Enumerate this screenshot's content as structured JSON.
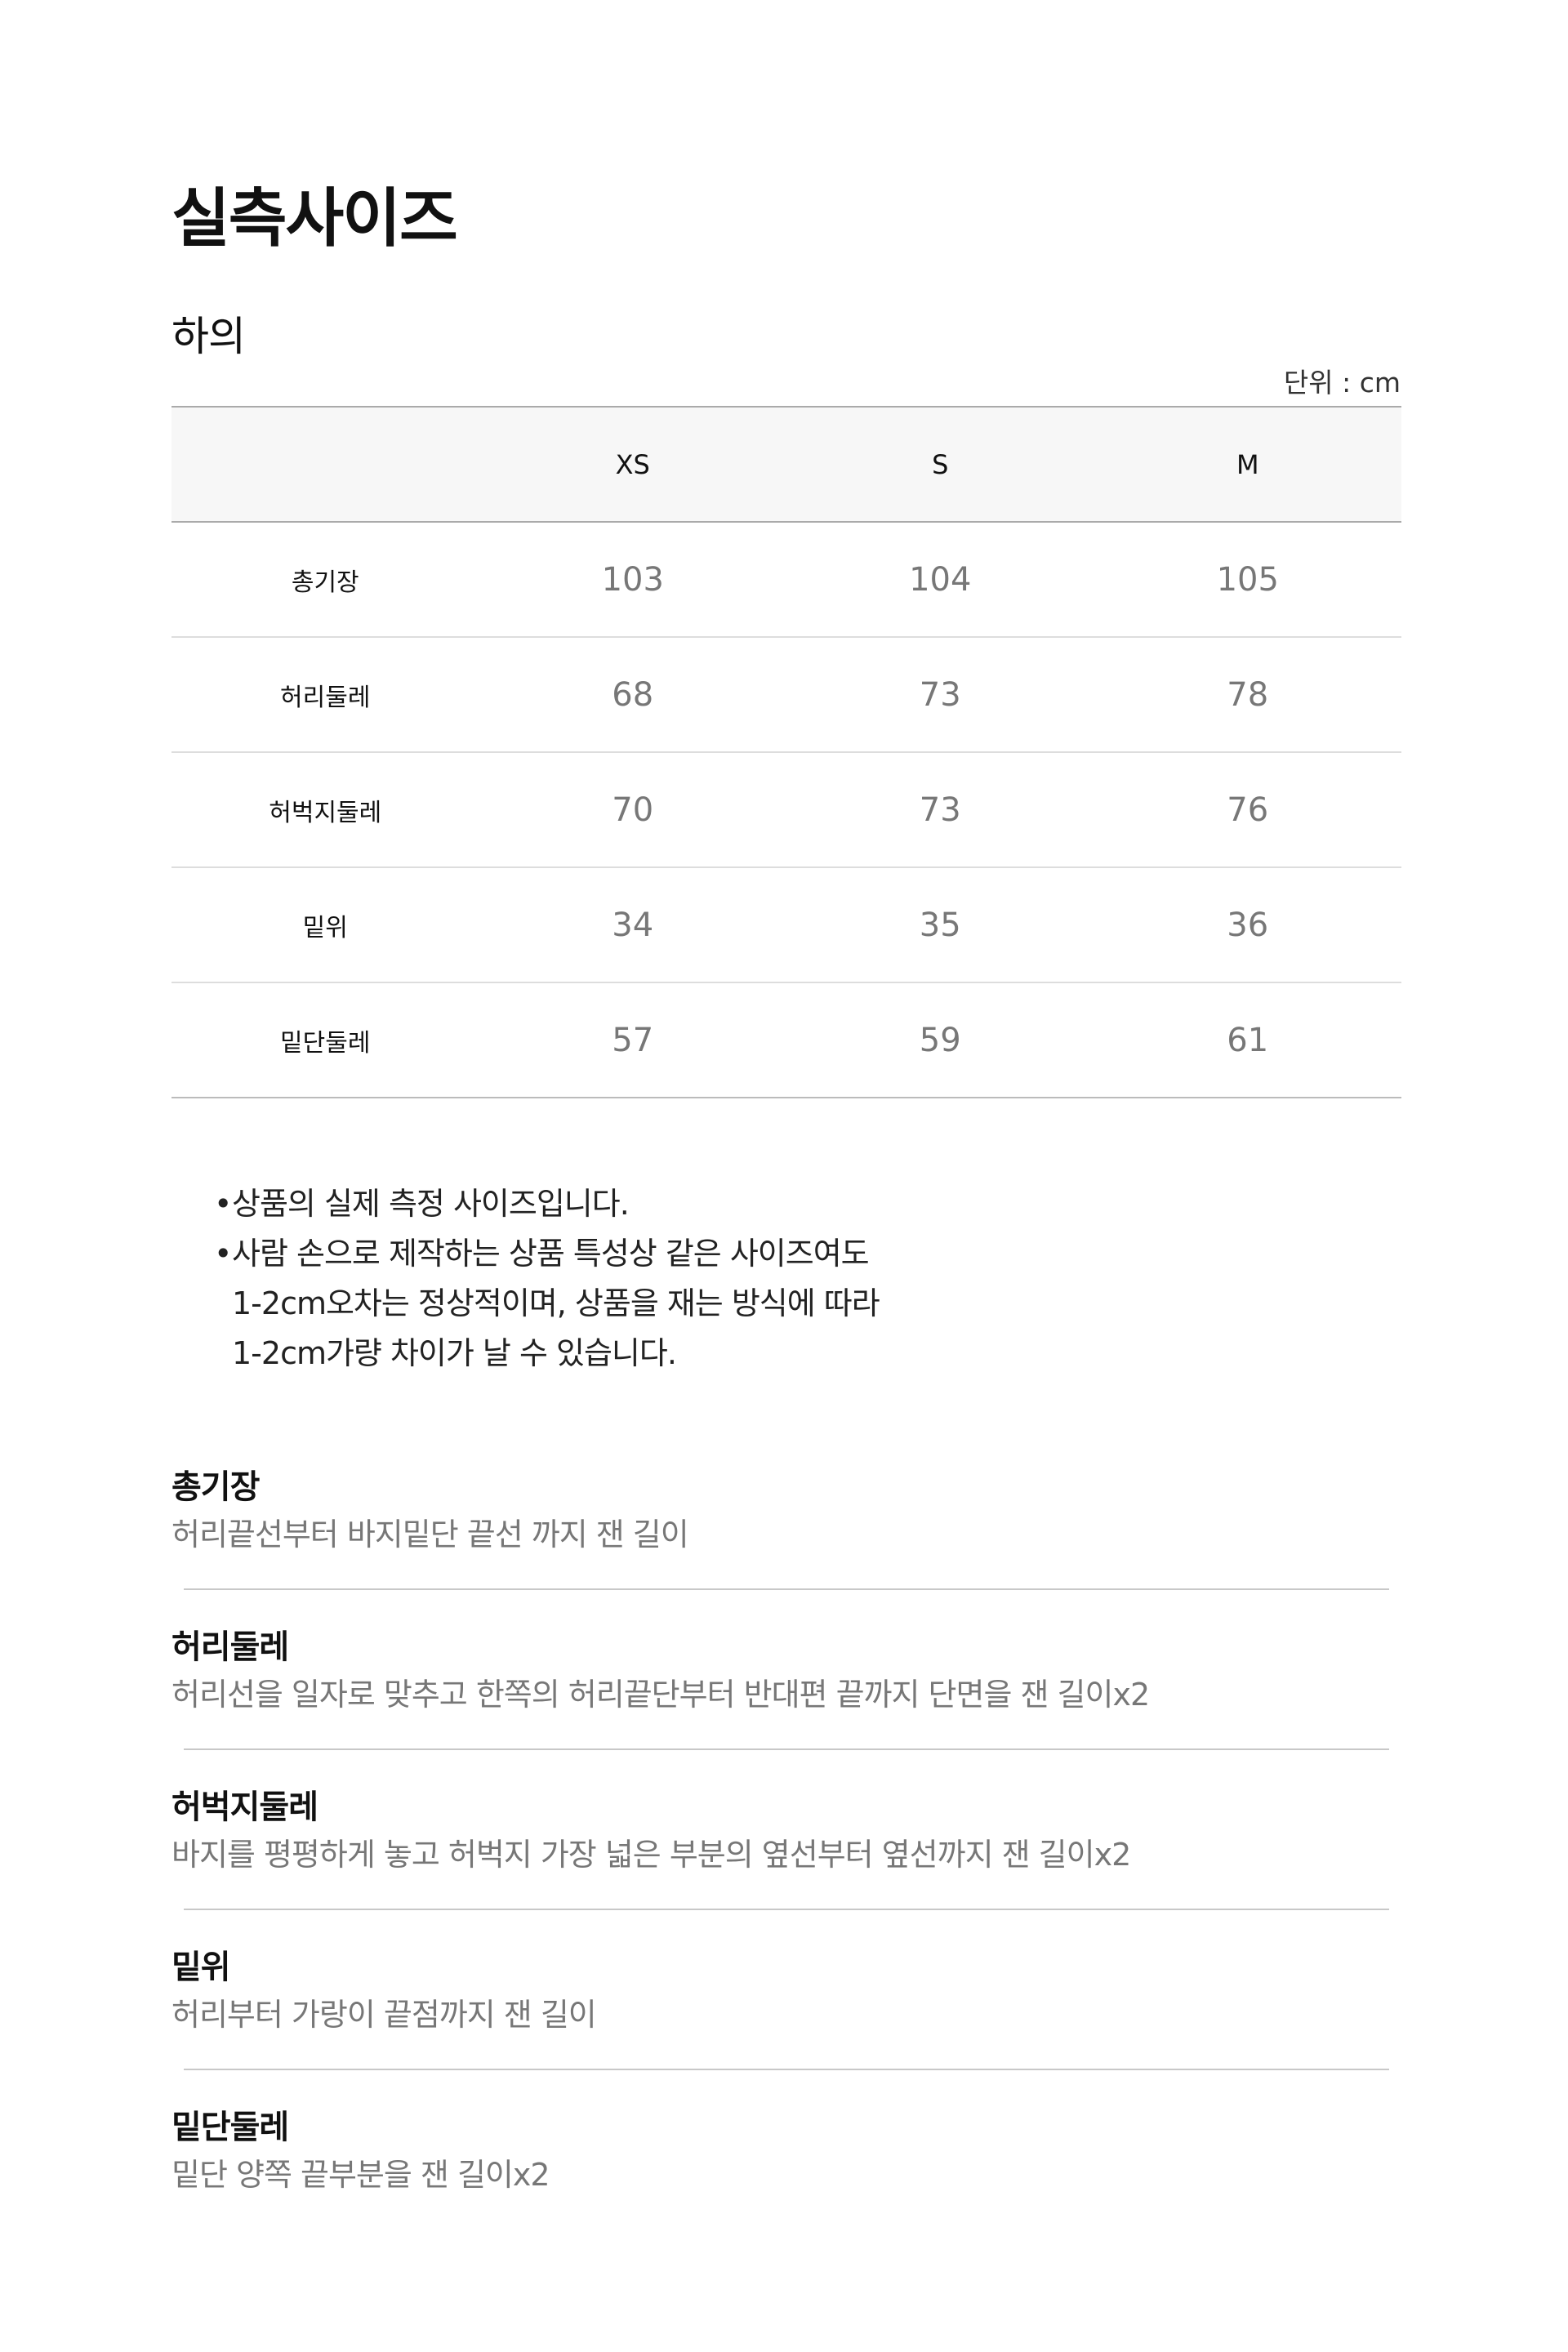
{
  "title": "실측사이즈",
  "subtitle": "하의",
  "unit": "단위 : cm",
  "table": {
    "headers": [
      "",
      "XS",
      "S",
      "M"
    ],
    "rows": [
      {
        "label": "총기장",
        "values": [
          "103",
          "104",
          "105"
        ]
      },
      {
        "label": "허리둘레",
        "values": [
          "68",
          "73",
          "78"
        ]
      },
      {
        "label": "허벅지둘레",
        "values": [
          "70",
          "73",
          "76"
        ]
      },
      {
        "label": "밑위",
        "values": [
          "34",
          "35",
          "36"
        ]
      },
      {
        "label": "밑단둘레",
        "values": [
          "57",
          "59",
          "61"
        ]
      }
    ]
  },
  "notes": [
    {
      "bullet": "•",
      "text": "상품의 실제 측정 사이즈입니다."
    },
    {
      "bullet": "•",
      "text": "사람 손으로 제작하는 상품 특성상 같은 사이즈여도"
    },
    {
      "bullet": "",
      "text": "1-2cm오차는 정상적이며, 상품을 재는 방식에 따라"
    },
    {
      "bullet": "",
      "text": "1-2cm가량 차이가 날 수 있습니다."
    }
  ],
  "definitions": [
    {
      "term": "총기장",
      "desc": "허리끝선부터 바지밑단 끝선 까지 잰 길이"
    },
    {
      "term": "허리둘레",
      "desc": "허리선을 일자로 맞추고 한쪽의 허리끝단부터 반대편 끝까지 단면을 잰 길이x2"
    },
    {
      "term": "허벅지둘레",
      "desc": "바지를 평평하게 놓고 허벅지 가장 넓은 부분의 옆선부터 옆선까지 잰 길이x2"
    },
    {
      "term": "밑위",
      "desc": "허리부터 가랑이 끝점까지 잰 길이"
    },
    {
      "term": "밑단둘레",
      "desc": "밑단 양쪽 끝부분을 잰 길이x2"
    }
  ]
}
